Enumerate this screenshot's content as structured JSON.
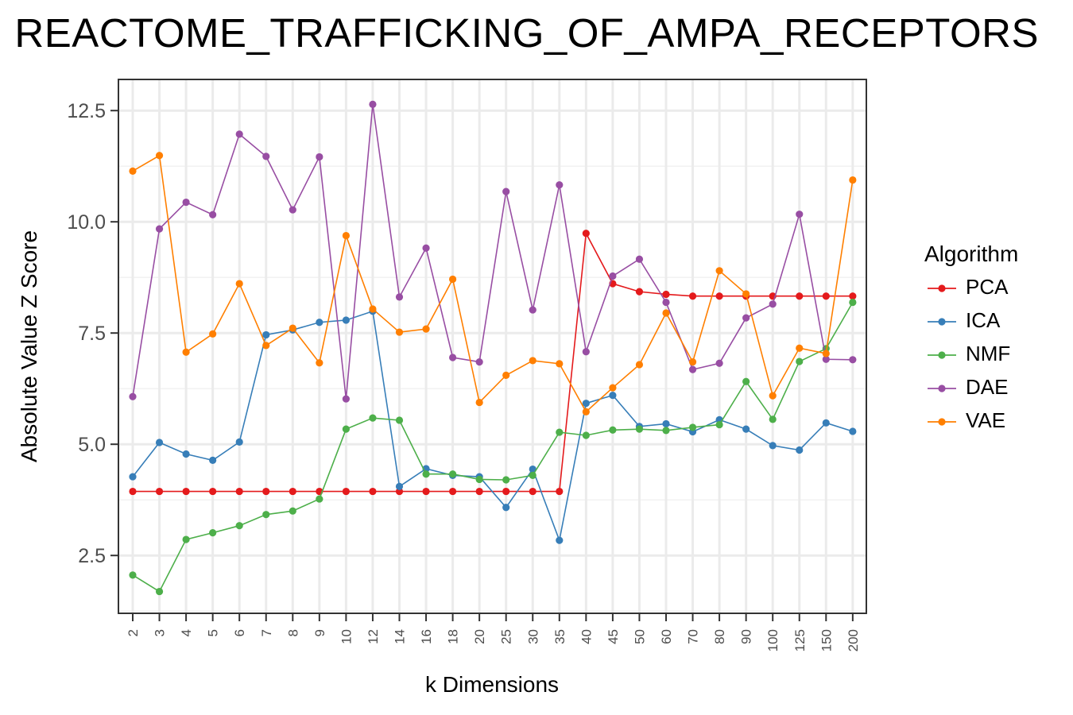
{
  "chart_data": {
    "type": "line",
    "title": "REACTOME_TRAFFICKING_OF_AMPA_RECEPTORS",
    "xlabel": "k Dimensions",
    "ylabel": "Absolute Value Z Score",
    "categories": [
      "2",
      "3",
      "4",
      "5",
      "6",
      "7",
      "8",
      "9",
      "10",
      "12",
      "14",
      "16",
      "18",
      "20",
      "25",
      "30",
      "35",
      "40",
      "45",
      "50",
      "60",
      "70",
      "80",
      "90",
      "100",
      "125",
      "150",
      "200"
    ],
    "ylim": [
      1.2,
      13.2
    ],
    "yticks": [
      2.5,
      5.0,
      7.5,
      10.0,
      12.5
    ],
    "ytick_labels": [
      "2.5",
      "5.0",
      "7.5",
      "10.0",
      "12.5"
    ],
    "grid": true,
    "legend_title": "Algorithm",
    "legend_position": "right",
    "series": [
      {
        "name": "PCA",
        "color": "#e41a1c",
        "values": [
          3.94,
          3.94,
          3.94,
          3.94,
          3.94,
          3.94,
          3.94,
          3.94,
          3.94,
          3.94,
          3.94,
          3.94,
          3.94,
          3.94,
          3.94,
          3.94,
          3.94,
          9.74,
          8.61,
          8.43,
          8.37,
          8.33,
          8.33,
          8.33,
          8.33,
          8.33,
          8.33,
          8.33
        ]
      },
      {
        "name": "ICA",
        "color": "#377eb8",
        "values": [
          4.27,
          5.04,
          4.78,
          4.64,
          5.05,
          7.46,
          7.57,
          7.74,
          7.79,
          7.99,
          4.05,
          4.45,
          4.3,
          4.27,
          3.58,
          4.44,
          2.84,
          5.92,
          6.1,
          5.4,
          5.46,
          5.28,
          5.55,
          5.34,
          4.97,
          4.87,
          5.48,
          5.29
        ]
      },
      {
        "name": "NMF",
        "color": "#4daf4a",
        "values": [
          2.06,
          1.69,
          2.86,
          3.01,
          3.17,
          3.42,
          3.5,
          3.77,
          5.34,
          5.59,
          5.54,
          4.33,
          4.33,
          4.21,
          4.2,
          4.3,
          5.27,
          5.2,
          5.32,
          5.34,
          5.31,
          5.38,
          5.44,
          6.41,
          5.56,
          6.86,
          7.15,
          8.19
        ]
      },
      {
        "name": "DAE",
        "color": "#984ea3",
        "values": [
          6.07,
          9.84,
          10.44,
          10.16,
          11.97,
          11.47,
          10.27,
          11.46,
          6.02,
          12.64,
          8.31,
          9.41,
          6.95,
          6.85,
          10.68,
          8.02,
          10.83,
          7.08,
          8.78,
          9.16,
          8.19,
          6.68,
          6.82,
          7.84,
          8.15,
          10.17,
          6.91,
          6.9
        ]
      },
      {
        "name": "VAE",
        "color": "#ff7f00",
        "values": [
          11.14,
          11.49,
          7.07,
          7.48,
          8.61,
          7.22,
          7.61,
          6.83,
          9.69,
          8.04,
          7.52,
          7.59,
          8.71,
          5.94,
          6.55,
          6.88,
          6.81,
          5.73,
          6.27,
          6.79,
          7.95,
          6.85,
          8.9,
          8.38,
          6.09,
          7.16,
          7.04,
          10.94
        ]
      }
    ]
  }
}
